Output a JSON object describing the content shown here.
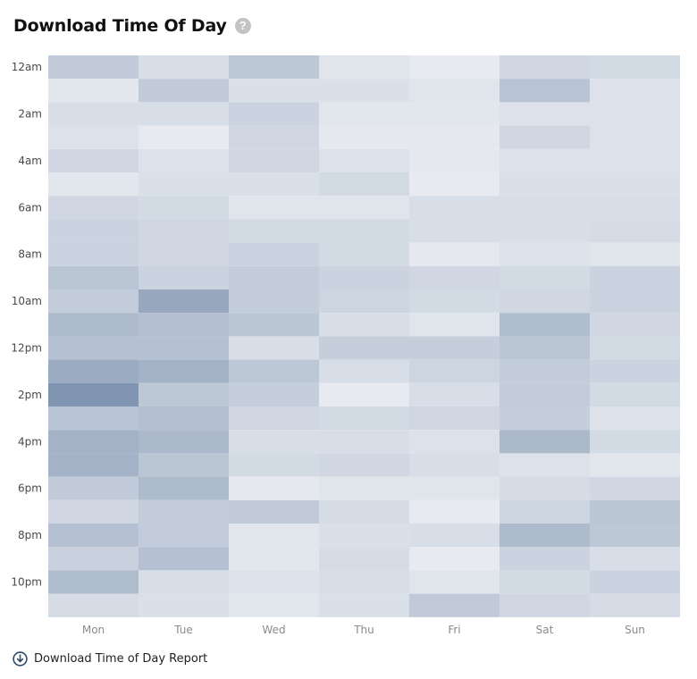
{
  "header": {
    "title": "Download Time Of Day",
    "help_icon": "question-circle-icon"
  },
  "footer": {
    "link_label": "Download Time of Day Report",
    "icon": "download-circle-icon"
  },
  "chart_data": {
    "type": "heatmap",
    "title": "Download Time Of Day",
    "xlabel": "",
    "ylabel": "",
    "x_categories": [
      "Mon",
      "Tue",
      "Wed",
      "Thu",
      "Fri",
      "Sat",
      "Sun"
    ],
    "y_categories": [
      "12am",
      "1am",
      "2am",
      "3am",
      "4am",
      "5am",
      "6am",
      "7am",
      "8am",
      "9am",
      "10am",
      "11am",
      "12pm",
      "1pm",
      "2pm",
      "3pm",
      "4pm",
      "5pm",
      "6pm",
      "7pm",
      "8pm",
      "9pm",
      "10pm",
      "11pm"
    ],
    "y_tick_labels": [
      "12am",
      "2am",
      "4am",
      "6am",
      "8am",
      "10am",
      "12pm",
      "2pm",
      "4pm",
      "6pm",
      "8pm",
      "10pm"
    ],
    "value_range": [
      0,
      1
    ],
    "color_low": "#f2f4f7",
    "color_high": "#6e86a6",
    "values": [
      [
        0.38,
        0.2,
        0.4,
        0.14,
        0.08,
        0.26,
        0.24
      ],
      [
        0.12,
        0.38,
        0.18,
        0.18,
        0.14,
        0.44,
        0.16
      ],
      [
        0.2,
        0.2,
        0.3,
        0.12,
        0.12,
        0.16,
        0.16
      ],
      [
        0.16,
        0.08,
        0.26,
        0.1,
        0.1,
        0.26,
        0.16
      ],
      [
        0.26,
        0.16,
        0.26,
        0.16,
        0.1,
        0.16,
        0.16
      ],
      [
        0.12,
        0.18,
        0.18,
        0.24,
        0.08,
        0.18,
        0.18
      ],
      [
        0.26,
        0.24,
        0.14,
        0.14,
        0.2,
        0.2,
        0.2
      ],
      [
        0.3,
        0.26,
        0.24,
        0.24,
        0.2,
        0.2,
        0.22
      ],
      [
        0.3,
        0.26,
        0.3,
        0.24,
        0.1,
        0.16,
        0.14
      ],
      [
        0.42,
        0.3,
        0.36,
        0.3,
        0.26,
        0.24,
        0.3
      ],
      [
        0.36,
        0.7,
        0.36,
        0.28,
        0.24,
        0.26,
        0.3
      ],
      [
        0.52,
        0.48,
        0.42,
        0.2,
        0.14,
        0.5,
        0.26
      ],
      [
        0.46,
        0.46,
        0.2,
        0.34,
        0.34,
        0.42,
        0.24
      ],
      [
        0.66,
        0.6,
        0.4,
        0.2,
        0.28,
        0.36,
        0.3
      ],
      [
        0.86,
        0.4,
        0.34,
        0.08,
        0.2,
        0.36,
        0.24
      ],
      [
        0.44,
        0.48,
        0.26,
        0.24,
        0.26,
        0.34,
        0.16
      ],
      [
        0.6,
        0.54,
        0.2,
        0.2,
        0.16,
        0.54,
        0.24
      ],
      [
        0.6,
        0.42,
        0.24,
        0.26,
        0.2,
        0.16,
        0.12
      ],
      [
        0.38,
        0.52,
        0.1,
        0.14,
        0.14,
        0.22,
        0.26
      ],
      [
        0.26,
        0.36,
        0.38,
        0.22,
        0.08,
        0.28,
        0.42
      ],
      [
        0.46,
        0.36,
        0.12,
        0.18,
        0.2,
        0.52,
        0.4
      ],
      [
        0.32,
        0.46,
        0.12,
        0.22,
        0.08,
        0.3,
        0.2
      ],
      [
        0.5,
        0.2,
        0.16,
        0.2,
        0.14,
        0.24,
        0.3
      ],
      [
        0.22,
        0.18,
        0.12,
        0.18,
        0.38,
        0.26,
        0.22
      ]
    ]
  }
}
